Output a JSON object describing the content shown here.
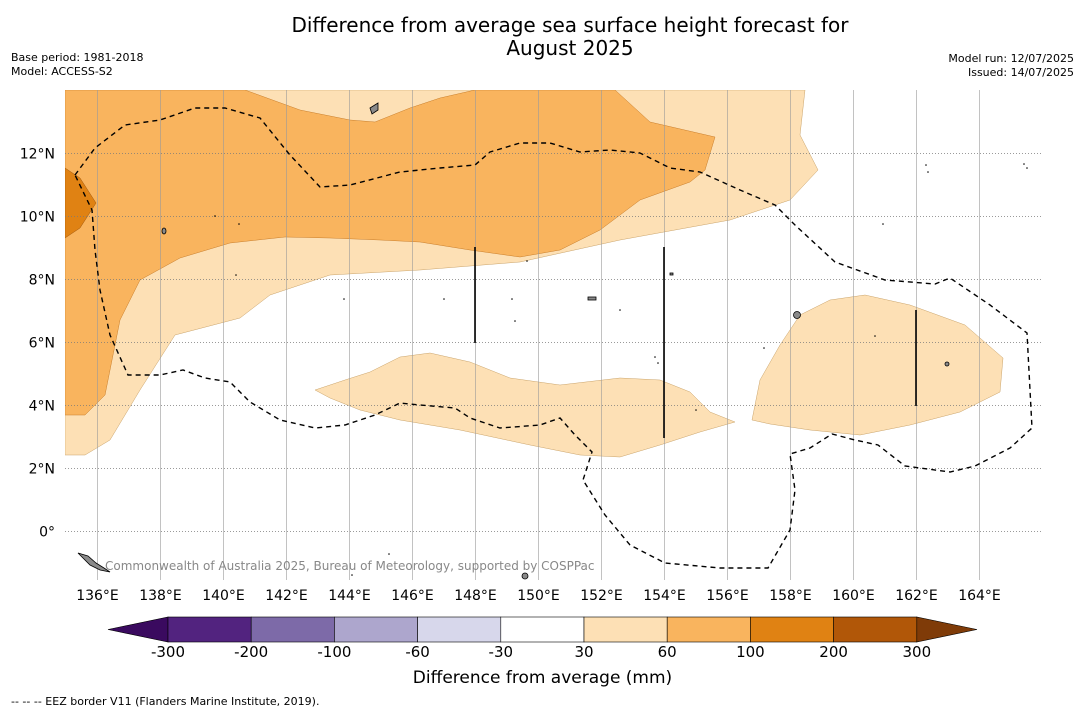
{
  "title": "Difference from average sea surface height forecast for August 2025",
  "title_line1": "Difference from average sea surface height forecast for",
  "title_line2": "August 2025",
  "base_period": "Base period: 1981-2018",
  "model": "Model: ACCESS-S2",
  "model_run": "Model run: 12/07/2025",
  "issued": "Issued: 14/07/2025",
  "copyright": "Commonwealth of Australia 2025, Bureau of Meteorology, supported by COSPPac",
  "footnote": "--  --  -- EEZ border V11 (Flanders Marine Institute, 2019).",
  "map": {
    "lon_range": [
      135,
      166
    ],
    "lat_range": [
      -1.5,
      14
    ],
    "lon_ticks": [
      "136°E",
      "138°E",
      "140°E",
      "142°E",
      "144°E",
      "146°E",
      "148°E",
      "150°E",
      "152°E",
      "154°E",
      "156°E",
      "158°E",
      "160°E",
      "162°E",
      "164°E"
    ],
    "lat_ticks": [
      "12°N",
      "10°N",
      "8°N",
      "6°N",
      "4°N",
      "2°N",
      "0°"
    ],
    "grid": true
  },
  "colorbar": {
    "title": "Difference from average (mm)",
    "labels": [
      "-300",
      "-200",
      "-100",
      "-60",
      "-30",
      "30",
      "60",
      "100",
      "200",
      "300"
    ],
    "colors": [
      "#3a0a5f",
      "#52237f",
      "#7d6aa8",
      "#ada6cd",
      "#d7d7eb",
      "#ffffff",
      "#fde0b5",
      "#f9b45e",
      "#e08213",
      "#b15708",
      "#7f3b08"
    ]
  }
}
